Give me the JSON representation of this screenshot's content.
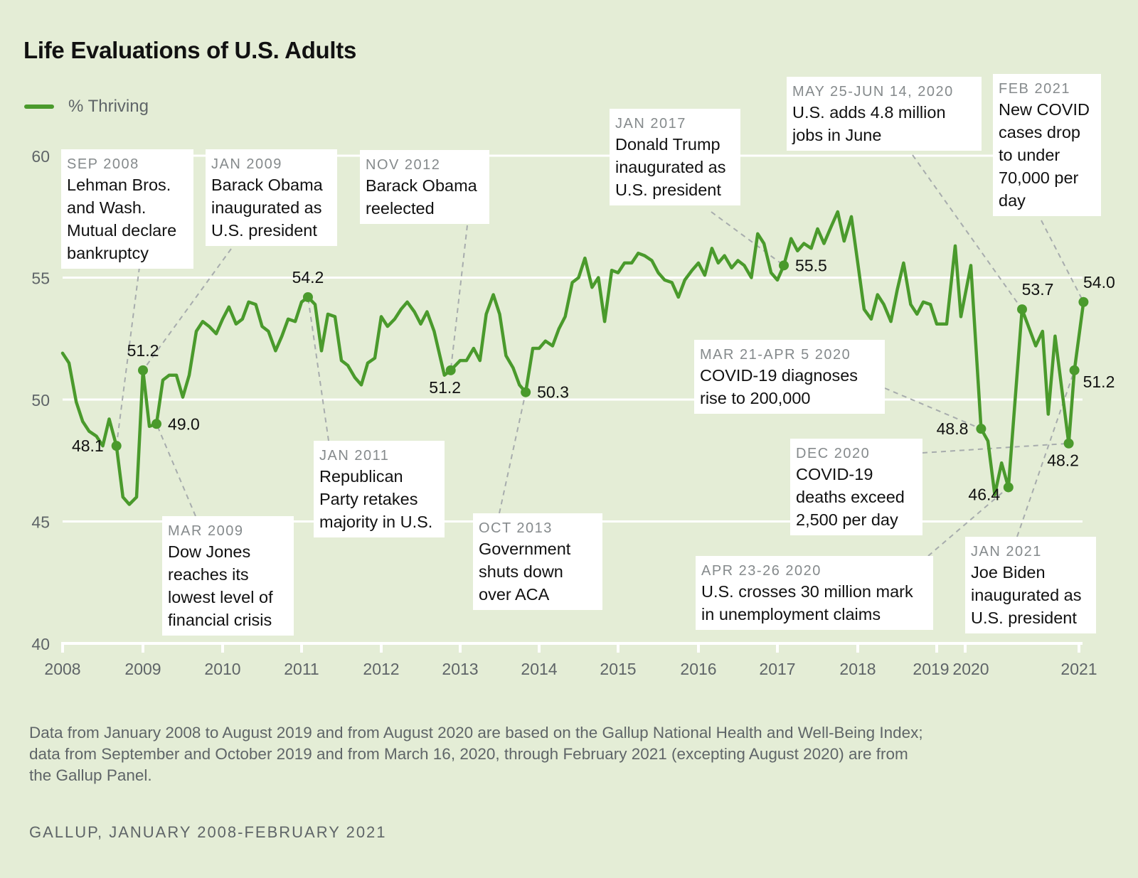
{
  "chart_data": {
    "type": "line",
    "title": "Life Evaluations of U.S. Adults",
    "xlabel": "",
    "ylabel": "",
    "ylim": [
      40,
      60
    ],
    "yticks": [
      40,
      45,
      50,
      55,
      60
    ],
    "xticks": [
      "2008",
      "2009",
      "2010",
      "2011",
      "2012",
      "2013",
      "2014",
      "2015",
      "2016",
      "2017",
      "2018",
      "2019",
      "2020",
      "2021"
    ],
    "grid": true,
    "legend_position": "top-left",
    "colors": {
      "line": "#4a9a2c",
      "grid": "#ffffff",
      "leader": "#a7acad"
    },
    "series": [
      {
        "name": "% Thriving",
        "points": [
          [
            2008.0,
            51.9
          ],
          [
            2008.08,
            51.5
          ],
          [
            2008.17,
            49.9
          ],
          [
            2008.25,
            49.1
          ],
          [
            2008.33,
            48.7
          ],
          [
            2008.42,
            48.5
          ],
          [
            2008.5,
            48.1
          ],
          [
            2008.58,
            49.2
          ],
          [
            2008.67,
            48.1
          ],
          [
            2008.75,
            46.0
          ],
          [
            2008.83,
            45.7
          ],
          [
            2008.92,
            46.0
          ],
          [
            2009.0,
            51.2
          ],
          [
            2009.08,
            48.9
          ],
          [
            2009.17,
            49.0
          ],
          [
            2009.25,
            50.8
          ],
          [
            2009.33,
            51.0
          ],
          [
            2009.42,
            51.0
          ],
          [
            2009.5,
            50.1
          ],
          [
            2009.58,
            51.0
          ],
          [
            2009.67,
            52.8
          ],
          [
            2009.75,
            53.2
          ],
          [
            2009.83,
            53.0
          ],
          [
            2009.92,
            52.7
          ],
          [
            2010.0,
            53.3
          ],
          [
            2010.08,
            53.8
          ],
          [
            2010.17,
            53.1
          ],
          [
            2010.25,
            53.3
          ],
          [
            2010.33,
            54.0
          ],
          [
            2010.42,
            53.9
          ],
          [
            2010.5,
            53.0
          ],
          [
            2010.58,
            52.8
          ],
          [
            2010.67,
            52.0
          ],
          [
            2010.75,
            52.6
          ],
          [
            2010.83,
            53.3
          ],
          [
            2010.92,
            53.2
          ],
          [
            2011.0,
            54.0
          ],
          [
            2011.08,
            54.2
          ],
          [
            2011.17,
            53.9
          ],
          [
            2011.25,
            52.0
          ],
          [
            2011.33,
            53.5
          ],
          [
            2011.42,
            53.4
          ],
          [
            2011.5,
            51.6
          ],
          [
            2011.58,
            51.4
          ],
          [
            2011.67,
            50.9
          ],
          [
            2011.75,
            50.6
          ],
          [
            2011.83,
            51.5
          ],
          [
            2011.92,
            51.7
          ],
          [
            2012.0,
            53.4
          ],
          [
            2012.08,
            53.0
          ],
          [
            2012.17,
            53.3
          ],
          [
            2012.25,
            53.7
          ],
          [
            2012.33,
            54.0
          ],
          [
            2012.42,
            53.6
          ],
          [
            2012.5,
            53.1
          ],
          [
            2012.58,
            53.6
          ],
          [
            2012.67,
            52.8
          ],
          [
            2012.8,
            51.0
          ],
          [
            2012.88,
            51.2
          ],
          [
            2013.0,
            51.6
          ],
          [
            2013.08,
            51.6
          ],
          [
            2013.17,
            52.1
          ],
          [
            2013.25,
            51.6
          ],
          [
            2013.33,
            53.5
          ],
          [
            2013.42,
            54.3
          ],
          [
            2013.5,
            53.5
          ],
          [
            2013.58,
            51.8
          ],
          [
            2013.67,
            51.3
          ],
          [
            2013.75,
            50.6
          ],
          [
            2013.83,
            50.3
          ],
          [
            2013.92,
            52.1
          ],
          [
            2014.0,
            52.1
          ],
          [
            2014.08,
            52.4
          ],
          [
            2014.17,
            52.2
          ],
          [
            2014.25,
            52.9
          ],
          [
            2014.33,
            53.4
          ],
          [
            2014.42,
            54.8
          ],
          [
            2014.5,
            55.0
          ],
          [
            2014.58,
            55.8
          ],
          [
            2014.67,
            54.6
          ],
          [
            2014.75,
            55.0
          ],
          [
            2014.83,
            53.2
          ],
          [
            2014.92,
            55.3
          ],
          [
            2015.0,
            55.2
          ],
          [
            2015.08,
            55.6
          ],
          [
            2015.17,
            55.6
          ],
          [
            2015.25,
            56.0
          ],
          [
            2015.33,
            55.9
          ],
          [
            2015.42,
            55.7
          ],
          [
            2015.5,
            55.2
          ],
          [
            2015.58,
            54.9
          ],
          [
            2015.67,
            54.8
          ],
          [
            2015.75,
            54.2
          ],
          [
            2015.83,
            54.9
          ],
          [
            2015.92,
            55.3
          ],
          [
            2016.0,
            55.6
          ],
          [
            2016.08,
            55.1
          ],
          [
            2016.17,
            56.2
          ],
          [
            2016.25,
            55.6
          ],
          [
            2016.33,
            55.9
          ],
          [
            2016.42,
            55.4
          ],
          [
            2016.5,
            55.7
          ],
          [
            2016.58,
            55.5
          ],
          [
            2016.67,
            55.0
          ],
          [
            2016.75,
            56.8
          ],
          [
            2016.83,
            56.4
          ],
          [
            2016.92,
            55.2
          ],
          [
            2017.0,
            54.9
          ],
          [
            2017.08,
            55.5
          ],
          [
            2017.17,
            56.6
          ],
          [
            2017.25,
            56.1
          ],
          [
            2017.33,
            56.4
          ],
          [
            2017.42,
            56.2
          ],
          [
            2017.5,
            57.0
          ],
          [
            2017.58,
            56.4
          ],
          [
            2017.67,
            57.1
          ],
          [
            2017.75,
            57.7
          ],
          [
            2017.83,
            56.5
          ],
          [
            2017.92,
            57.5
          ],
          [
            2018.0,
            55.6
          ],
          [
            2018.08,
            53.7
          ],
          [
            2018.17,
            53.3
          ],
          [
            2018.25,
            54.3
          ],
          [
            2018.33,
            53.9
          ],
          [
            2018.42,
            53.2
          ],
          [
            2018.5,
            54.5
          ],
          [
            2018.58,
            55.6
          ],
          [
            2018.67,
            53.9
          ],
          [
            2018.75,
            53.5
          ],
          [
            2018.83,
            54.0
          ],
          [
            2018.92,
            53.9
          ],
          [
            2019.0,
            53.1
          ],
          [
            2019.35,
            53.1
          ],
          [
            2019.65,
            56.3
          ],
          [
            2019.85,
            53.4
          ],
          [
            2020.05,
            55.5
          ],
          [
            2020.14,
            48.8
          ],
          [
            2020.2,
            48.3
          ],
          [
            2020.26,
            46.1
          ],
          [
            2020.32,
            47.4
          ],
          [
            2020.38,
            46.4
          ],
          [
            2020.5,
            53.7
          ],
          [
            2020.62,
            52.2
          ],
          [
            2020.68,
            52.8
          ],
          [
            2020.73,
            49.4
          ],
          [
            2020.79,
            52.6
          ],
          [
            2020.91,
            48.2
          ],
          [
            2020.96,
            51.2
          ],
          [
            2021.04,
            54.0
          ]
        ]
      }
    ],
    "markers": [
      {
        "x": 2008.67,
        "y": 48.1,
        "label": "48.1",
        "pos": "left"
      },
      {
        "x": 2009.0,
        "y": 51.2,
        "label": "51.2",
        "pos": "top"
      },
      {
        "x": 2009.17,
        "y": 49.0,
        "label": "49.0",
        "pos": "right"
      },
      {
        "x": 2011.08,
        "y": 54.2,
        "label": "54.2",
        "pos": "top"
      },
      {
        "x": 2012.88,
        "y": 51.2,
        "label": "51.2",
        "pos": "bottom"
      },
      {
        "x": 2013.83,
        "y": 50.3,
        "label": "50.3",
        "pos": "right"
      },
      {
        "x": 2017.08,
        "y": 55.5,
        "label": "55.5",
        "pos": "right"
      },
      {
        "x": 2020.14,
        "y": 48.8,
        "label": "48.8",
        "pos": "left"
      },
      {
        "x": 2020.38,
        "y": 46.4,
        "label": "46.4",
        "pos": "bottom-left"
      },
      {
        "x": 2020.5,
        "y": 53.7,
        "label": "53.7",
        "pos": "top-right"
      },
      {
        "x": 2020.91,
        "y": 48.2,
        "label": "48.2",
        "pos": "bottom"
      },
      {
        "x": 2020.96,
        "y": 51.2,
        "label": "51.2",
        "pos": "bottom-right"
      },
      {
        "x": 2021.04,
        "y": 54.0,
        "label": "54.0",
        "pos": "top-right"
      }
    ],
    "annotations": [
      {
        "date": "SEP 2008",
        "text": "Lehman Bros.\nand Wash.\nMutual declare\nbankruptcy",
        "marker": 0
      },
      {
        "date": "JAN 2009",
        "text": "Barack Obama\ninaugurated as\nU.S. president",
        "marker": 1
      },
      {
        "date": "MAR 2009",
        "text": "Dow Jones\nreaches its\nlowest level of\nfinancial crisis",
        "marker": 2
      },
      {
        "date": "NOV 2012",
        "text": "Barack Obama\nreelected",
        "marker": 4
      },
      {
        "date": "JAN 2011",
        "text": "Republican\nParty retakes\nmajority in U.S.",
        "marker": 3
      },
      {
        "date": "OCT 2013",
        "text": "Government\nshuts down\nover ACA",
        "marker": 5
      },
      {
        "date": "JAN 2017",
        "text": "Donald Trump\ninaugurated as\nU.S. president",
        "marker": 6
      },
      {
        "date": "MAY 25-JUN 14, 2020",
        "text": "U.S. adds 4.8 million\njobs in June",
        "marker": 9
      },
      {
        "date": "FEB 2021",
        "text": "New COVID\ncases drop\nto under\n70,000 per\nday",
        "marker": 12
      },
      {
        "date": "MAR 21-APR 5 2020",
        "text": "COVID-19 diagnoses\nrise to 200,000",
        "marker": 7
      },
      {
        "date": "DEC 2020",
        "text": "COVID-19\ndeaths exceed\n2,500 per day",
        "marker": 10
      },
      {
        "date": "APR 23-26 2020",
        "text": "U.S. crosses 30 million mark\nin unemployment claims",
        "marker": 8
      },
      {
        "date": "JAN 2021",
        "text": "Joe Biden\ninaugurated as\nU.S. president",
        "marker": 11
      }
    ]
  },
  "legend": {
    "label": "% Thriving"
  },
  "footnote": "Data from January 2008 to August 2019 and from August 2020 are based on the Gallup National Health and Well-Being Index; data from September and October 2019 and from March 16, 2020, through February 2021 (excepting August 2020) are from the Gallup Panel.",
  "source": "GALLUP, JANUARY 2008-FEBRUARY 2021"
}
